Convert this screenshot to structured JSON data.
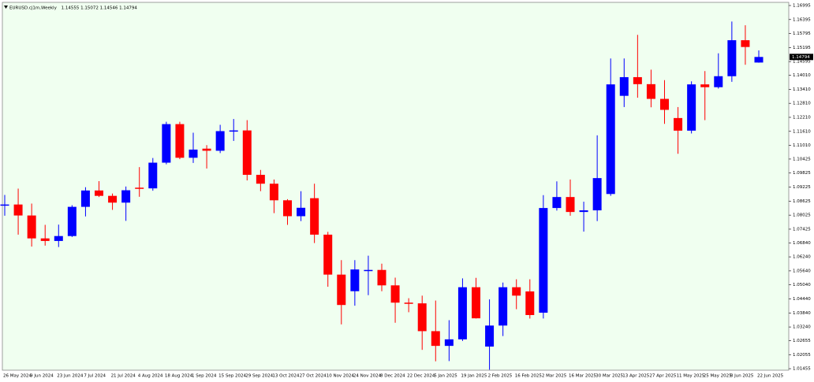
{
  "chart_data": {
    "type": "candlestick",
    "title": "EURUSD.cj1m,Weekly",
    "categories": [
      "26 May 2024",
      null,
      "9 Jun 2024",
      null,
      "23 Jun 2024",
      null,
      "7 Jul 2024",
      null,
      "21 Jul 2024",
      null,
      "4 Aug 2024",
      null,
      "18 Aug 2024",
      null,
      "1 Sep 2024",
      null,
      "15 Sep 2024",
      null,
      "29 Sep 2024",
      null,
      "13 Oct 2024",
      null,
      "27 Oct 2024",
      null,
      "10 Nov 2024",
      null,
      "24 Nov 2024",
      null,
      "8 Dec 2024",
      null,
      "22 Dec 2024",
      null,
      "5 Jan 2025",
      null,
      "19 Jan 2025",
      null,
      "2 Feb 2025",
      null,
      "16 Feb 2025",
      null,
      "2 Mar 2025",
      null,
      "16 Mar 2025",
      null,
      "30 Mar 2025",
      null,
      "13 Apr 2025",
      null,
      "27 Apr 2025",
      null,
      "11 May 2025",
      null,
      "25 May 2025",
      null,
      "8 Jun 2025",
      null,
      "22 Jun 2025"
    ],
    "open": [
      1.0846,
      1.0848,
      1.0801,
      1.0703,
      1.0692,
      1.0713,
      1.0838,
      1.0908,
      1.0885,
      1.0856,
      1.092,
      1.0917,
      1.1027,
      1.1192,
      1.1048,
      1.1087,
      1.1078,
      1.1162,
      1.1165,
      1.0975,
      1.0937,
      1.0866,
      1.0798,
      1.0875,
      1.0719,
      1.0548,
      1.0477,
      1.0565,
      1.0568,
      1.0502,
      1.0428,
      1.0425,
      1.0306,
      1.0243,
      1.0271,
      1.0494,
      1.024,
      1.033,
      1.0494,
      1.0476,
      1.0385,
      1.0833,
      1.088,
      1.0816,
      1.0823,
      1.0893,
      1.1313,
      1.1393,
      1.1363,
      1.13,
      1.1218,
      1.1164,
      1.1362,
      1.135,
      1.1397,
      1.1551,
      1.14555
    ],
    "high": [
      1.0889,
      1.0916,
      1.0852,
      1.0761,
      1.0762,
      1.0845,
      1.0922,
      1.0948,
      1.0895,
      1.0925,
      1.1008,
      1.1047,
      1.1202,
      1.1202,
      1.1155,
      1.1102,
      1.1189,
      1.1214,
      1.1209,
      1.0996,
      1.0955,
      1.0871,
      1.0905,
      1.0937,
      1.0731,
      1.061,
      1.061,
      1.0629,
      1.0595,
      1.0535,
      1.0447,
      1.0458,
      1.0437,
      1.0353,
      1.0532,
      1.0534,
      1.0442,
      1.0514,
      1.0528,
      1.0528,
      1.0888,
      1.0947,
      1.0955,
      1.086,
      1.1144,
      1.1473,
      1.1473,
      1.1574,
      1.1425,
      1.138,
      1.1265,
      1.1375,
      1.1419,
      1.1495,
      1.1631,
      1.1615,
      1.15072
    ],
    "low": [
      1.08,
      1.0719,
      1.0668,
      1.0672,
      1.0666,
      1.0709,
      1.0797,
      1.088,
      1.0825,
      1.0778,
      1.0881,
      1.0907,
      1.102,
      1.1042,
      1.1026,
      1.1002,
      1.1068,
      1.112,
      1.0951,
      1.0905,
      1.0811,
      1.0761,
      1.0777,
      1.0683,
      1.0496,
      1.0335,
      1.0415,
      1.046,
      1.0477,
      1.0342,
      1.0387,
      1.0226,
      1.0177,
      1.0178,
      1.0264,
      1.036,
      1.0141,
      1.0285,
      1.04,
      1.036,
      1.036,
      1.0822,
      1.08,
      1.0732,
      1.0777,
      1.0885,
      1.1265,
      1.1305,
      1.1264,
      1.1193,
      1.1065,
      1.1152,
      1.1209,
      1.1344,
      1.1373,
      1.1446,
      1.14546
    ],
    "close": [
      1.0848,
      1.0801,
      1.0703,
      1.0692,
      1.0713,
      1.0838,
      1.0908,
      1.0885,
      1.0856,
      1.0909,
      1.0917,
      1.1027,
      1.1192,
      1.1048,
      1.1083,
      1.1078,
      1.1162,
      1.1165,
      1.0975,
      1.0937,
      1.0866,
      1.0798,
      1.0834,
      1.0719,
      1.0548,
      1.0418,
      1.057,
      1.0568,
      1.0502,
      1.0428,
      1.0425,
      1.0306,
      1.0243,
      1.0271,
      1.0494,
      1.0361,
      1.033,
      1.0494,
      1.0458,
      1.0375,
      1.0833,
      1.088,
      1.0816,
      1.0823,
      1.0961,
      1.1362,
      1.1393,
      1.1363,
      1.13,
      1.1253,
      1.1164,
      1.1362,
      1.135,
      1.1397,
      1.1551,
      1.1522,
      1.14794
    ],
    "up_color": "#0000ff",
    "down_color": "#ff0000",
    "ylim": [
      1.0139,
      1.1713
    ],
    "yticks": [
      1.16995,
      1.16395,
      1.15795,
      1.15195,
      1.14595,
      {
        "value": 1.1401,
        "label": "1.14010"
      },
      {
        "value": 1.1341,
        "label": "1.13410"
      },
      {
        "value": 1.1281,
        "label": "1.12810"
      },
      {
        "value": 1.1221,
        "label": "1.12210"
      },
      {
        "value": 1.1161,
        "label": "1.11610"
      },
      {
        "value": 1.1101,
        "label": "1.11010"
      },
      1.10425,
      1.09825,
      1.09225,
      1.08625,
      1.08025,
      1.07425,
      {
        "value": 1.0684,
        "label": "1.06840"
      },
      {
        "value": 1.0624,
        "label": "1.06240"
      },
      {
        "value": 1.0564,
        "label": "1.05640"
      },
      {
        "value": 1.0504,
        "label": "1.05040"
      },
      {
        "value": 1.0444,
        "label": "1.04440"
      },
      {
        "value": 1.0384,
        "label": "1.03840"
      },
      {
        "value": 1.0324,
        "label": "1.03240"
      },
      1.02655,
      1.02055,
      1.01455
    ],
    "grid": false
  }
}
